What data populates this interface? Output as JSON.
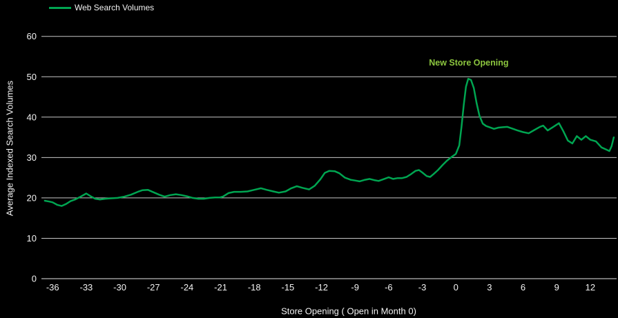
{
  "legend": {
    "label": "Web Search Volumes"
  },
  "chart_data": {
    "type": "line",
    "title": "",
    "xlabel": "Store Opening ( Open in Month 0)",
    "ylabel": "Average Indexed Search Volumes",
    "xlim": [
      -37,
      14.35
    ],
    "ylim": [
      0,
      62
    ],
    "x_ticks": [
      -36,
      -33,
      -30,
      -27,
      -24,
      -21,
      -18,
      -15,
      -12,
      -9,
      -6,
      -3,
      0,
      3,
      6,
      9,
      12
    ],
    "y_ticks": [
      0,
      10,
      20,
      30,
      40,
      50,
      60
    ],
    "grid": "horizontal-only",
    "legend_position": "top-left",
    "background_color": "#000000",
    "text_color": "#F2F2F2",
    "gridline_color": "#C8C8C8",
    "axis_line_color": "#E8E8E8",
    "annotation": {
      "text": "New Store Opening",
      "x": 1.15,
      "y": 53.4,
      "color": "#8CC63F"
    },
    "series": [
      {
        "name": "Web Search Volumes",
        "color": "#00A551",
        "points": [
          [
            -36.7,
            19.3
          ],
          [
            -36.3,
            19.1
          ],
          [
            -36.0,
            18.9
          ],
          [
            -35.6,
            18.3
          ],
          [
            -35.2,
            18.0
          ],
          [
            -34.8,
            18.5
          ],
          [
            -34.4,
            19.2
          ],
          [
            -34.0,
            19.6
          ],
          [
            -33.5,
            20.3
          ],
          [
            -33.0,
            21.1
          ],
          [
            -32.6,
            20.4
          ],
          [
            -32.2,
            19.8
          ],
          [
            -31.8,
            19.6
          ],
          [
            -31.3,
            19.8
          ],
          [
            -30.8,
            19.9
          ],
          [
            -30.2,
            20.0
          ],
          [
            -29.6,
            20.3
          ],
          [
            -29.0,
            20.8
          ],
          [
            -28.4,
            21.5
          ],
          [
            -28.0,
            21.9
          ],
          [
            -27.5,
            22.0
          ],
          [
            -27.0,
            21.4
          ],
          [
            -26.5,
            20.8
          ],
          [
            -26.0,
            20.3
          ],
          [
            -25.5,
            20.7
          ],
          [
            -25.0,
            20.9
          ],
          [
            -24.5,
            20.7
          ],
          [
            -24.0,
            20.4
          ],
          [
            -23.5,
            20.0
          ],
          [
            -23.0,
            19.8
          ],
          [
            -22.5,
            19.8
          ],
          [
            -22.0,
            20.0
          ],
          [
            -21.5,
            20.1
          ],
          [
            -21.1,
            20.1
          ],
          [
            -20.8,
            20.3
          ],
          [
            -20.3,
            21.2
          ],
          [
            -19.8,
            21.5
          ],
          [
            -19.2,
            21.5
          ],
          [
            -18.6,
            21.6
          ],
          [
            -18.0,
            22.0
          ],
          [
            -17.4,
            22.4
          ],
          [
            -16.9,
            22.0
          ],
          [
            -16.3,
            21.6
          ],
          [
            -15.8,
            21.3
          ],
          [
            -15.2,
            21.6
          ],
          [
            -14.7,
            22.4
          ],
          [
            -14.2,
            22.9
          ],
          [
            -13.7,
            22.5
          ],
          [
            -13.1,
            22.1
          ],
          [
            -12.6,
            23.0
          ],
          [
            -12.1,
            24.6
          ],
          [
            -11.7,
            26.2
          ],
          [
            -11.3,
            26.7
          ],
          [
            -10.8,
            26.6
          ],
          [
            -10.4,
            26.1
          ],
          [
            -9.9,
            25.0
          ],
          [
            -9.4,
            24.5
          ],
          [
            -9.0,
            24.3
          ],
          [
            -8.6,
            24.1
          ],
          [
            -8.1,
            24.5
          ],
          [
            -7.7,
            24.7
          ],
          [
            -7.3,
            24.4
          ],
          [
            -6.9,
            24.2
          ],
          [
            -6.4,
            24.7
          ],
          [
            -6.0,
            25.1
          ],
          [
            -5.6,
            24.7
          ],
          [
            -5.2,
            24.9
          ],
          [
            -4.8,
            24.9
          ],
          [
            -4.4,
            25.2
          ],
          [
            -4.0,
            25.9
          ],
          [
            -3.6,
            26.7
          ],
          [
            -3.3,
            26.9
          ],
          [
            -3.0,
            26.3
          ],
          [
            -2.6,
            25.4
          ],
          [
            -2.3,
            25.2
          ],
          [
            -2.0,
            25.9
          ],
          [
            -1.6,
            26.9
          ],
          [
            -1.2,
            28.1
          ],
          [
            -0.8,
            29.2
          ],
          [
            -0.4,
            30.1
          ],
          [
            0.0,
            30.9
          ],
          [
            0.3,
            33.0
          ],
          [
            0.5,
            37.5
          ],
          [
            0.7,
            43.0
          ],
          [
            0.9,
            47.5
          ],
          [
            1.1,
            49.5
          ],
          [
            1.35,
            49.2
          ],
          [
            1.6,
            47.2
          ],
          [
            1.85,
            43.5
          ],
          [
            2.1,
            40.4
          ],
          [
            2.4,
            38.4
          ],
          [
            2.7,
            37.8
          ],
          [
            3.0,
            37.5
          ],
          [
            3.4,
            37.1
          ],
          [
            3.8,
            37.4
          ],
          [
            4.2,
            37.5
          ],
          [
            4.6,
            37.6
          ],
          [
            5.0,
            37.2
          ],
          [
            5.5,
            36.7
          ],
          [
            6.0,
            36.3
          ],
          [
            6.5,
            36.0
          ],
          [
            7.0,
            36.8
          ],
          [
            7.5,
            37.6
          ],
          [
            7.8,
            37.9
          ],
          [
            8.2,
            36.7
          ],
          [
            8.7,
            37.6
          ],
          [
            9.2,
            38.5
          ],
          [
            9.6,
            36.5
          ],
          [
            10.0,
            34.2
          ],
          [
            10.4,
            33.5
          ],
          [
            10.8,
            35.3
          ],
          [
            11.2,
            34.4
          ],
          [
            11.6,
            35.3
          ],
          [
            12.0,
            34.4
          ],
          [
            12.5,
            34.0
          ],
          [
            13.0,
            32.5
          ],
          [
            13.4,
            32.0
          ],
          [
            13.7,
            31.6
          ],
          [
            13.9,
            32.8
          ],
          [
            14.1,
            35.0
          ]
        ]
      }
    ]
  }
}
